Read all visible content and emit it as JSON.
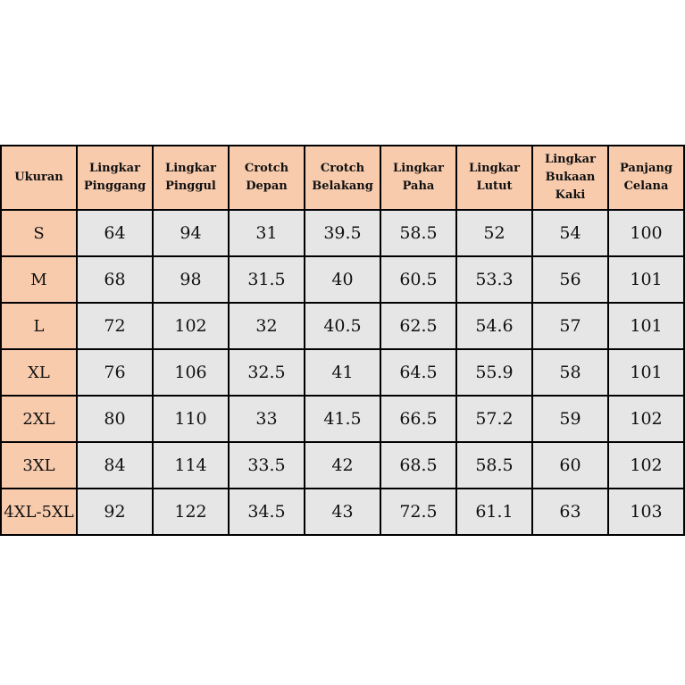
{
  "colors": {
    "header": "#F8CBAD",
    "cell": "#E7E6E6",
    "border": "#000000"
  },
  "headers": [
    "Ukuran",
    "Lingkar Pinggang",
    "Lingkar Pinggul",
    "Crotch Depan",
    "Crotch Belakang",
    "Lingkar Paha",
    "Lingkar Lutut",
    "Lingkar Bukaan Kaki",
    "Panjang Celana"
  ],
  "rows": [
    [
      "S",
      "64",
      "94",
      "31",
      "39.5",
      "58.5",
      "52",
      "54",
      "100"
    ],
    [
      "M",
      "68",
      "98",
      "31.5",
      "40",
      "60.5",
      "53.3",
      "56",
      "101"
    ],
    [
      "L",
      "72",
      "102",
      "32",
      "40.5",
      "62.5",
      "54.6",
      "57",
      "101"
    ],
    [
      "XL",
      "76",
      "106",
      "32.5",
      "41",
      "64.5",
      "55.9",
      "58",
      "101"
    ],
    [
      "2XL",
      "80",
      "110",
      "33",
      "41.5",
      "66.5",
      "57.2",
      "59",
      "102"
    ],
    [
      "3XL",
      "84",
      "114",
      "33.5",
      "42",
      "68.5",
      "58.5",
      "60",
      "102"
    ],
    [
      "4XL-5XL",
      "92",
      "122",
      "34.5",
      "43",
      "72.5",
      "61.1",
      "63",
      "103"
    ]
  ]
}
